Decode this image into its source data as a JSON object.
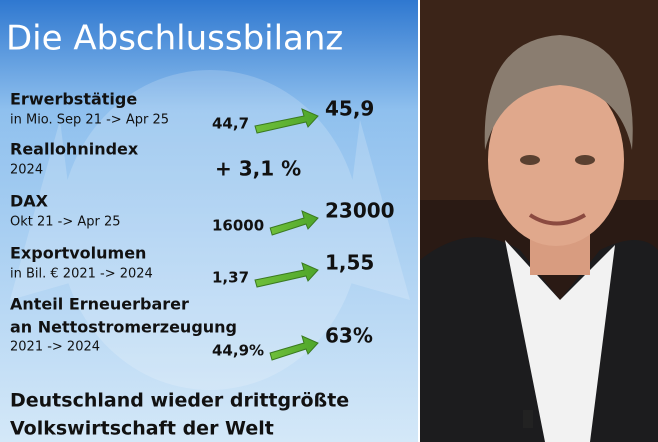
{
  "title": "Die Abschlussbilanz",
  "rows": [
    {
      "label": [
        "Erwerbstätige"
      ],
      "sublabel": "in Mio. Sep 21 -> Apr 25",
      "from": "44,7",
      "to": "45,9"
    },
    {
      "label": [
        "Reallohnindex"
      ],
      "sublabel": "2024",
      "value": "+ 3,1 %"
    },
    {
      "label": [
        "DAX"
      ],
      "sublabel": "Okt 21 -> Apr 25",
      "from": "16000",
      "to": "23000"
    },
    {
      "label": [
        "Exportvolumen"
      ],
      "sublabel": "in Bil. € 2021 -> 2024",
      "from": "1,37",
      "to": "1,55"
    },
    {
      "label": [
        "Anteil Erneuerbarer",
        "an Nettostromerzeugung"
      ],
      "sublabel": "2021 -> 2024",
      "from": "44,9%",
      "to": "63%"
    }
  ],
  "footer": [
    "Deutschland wieder drittgrößte",
    "Volkswirtschaft der Welt"
  ]
}
